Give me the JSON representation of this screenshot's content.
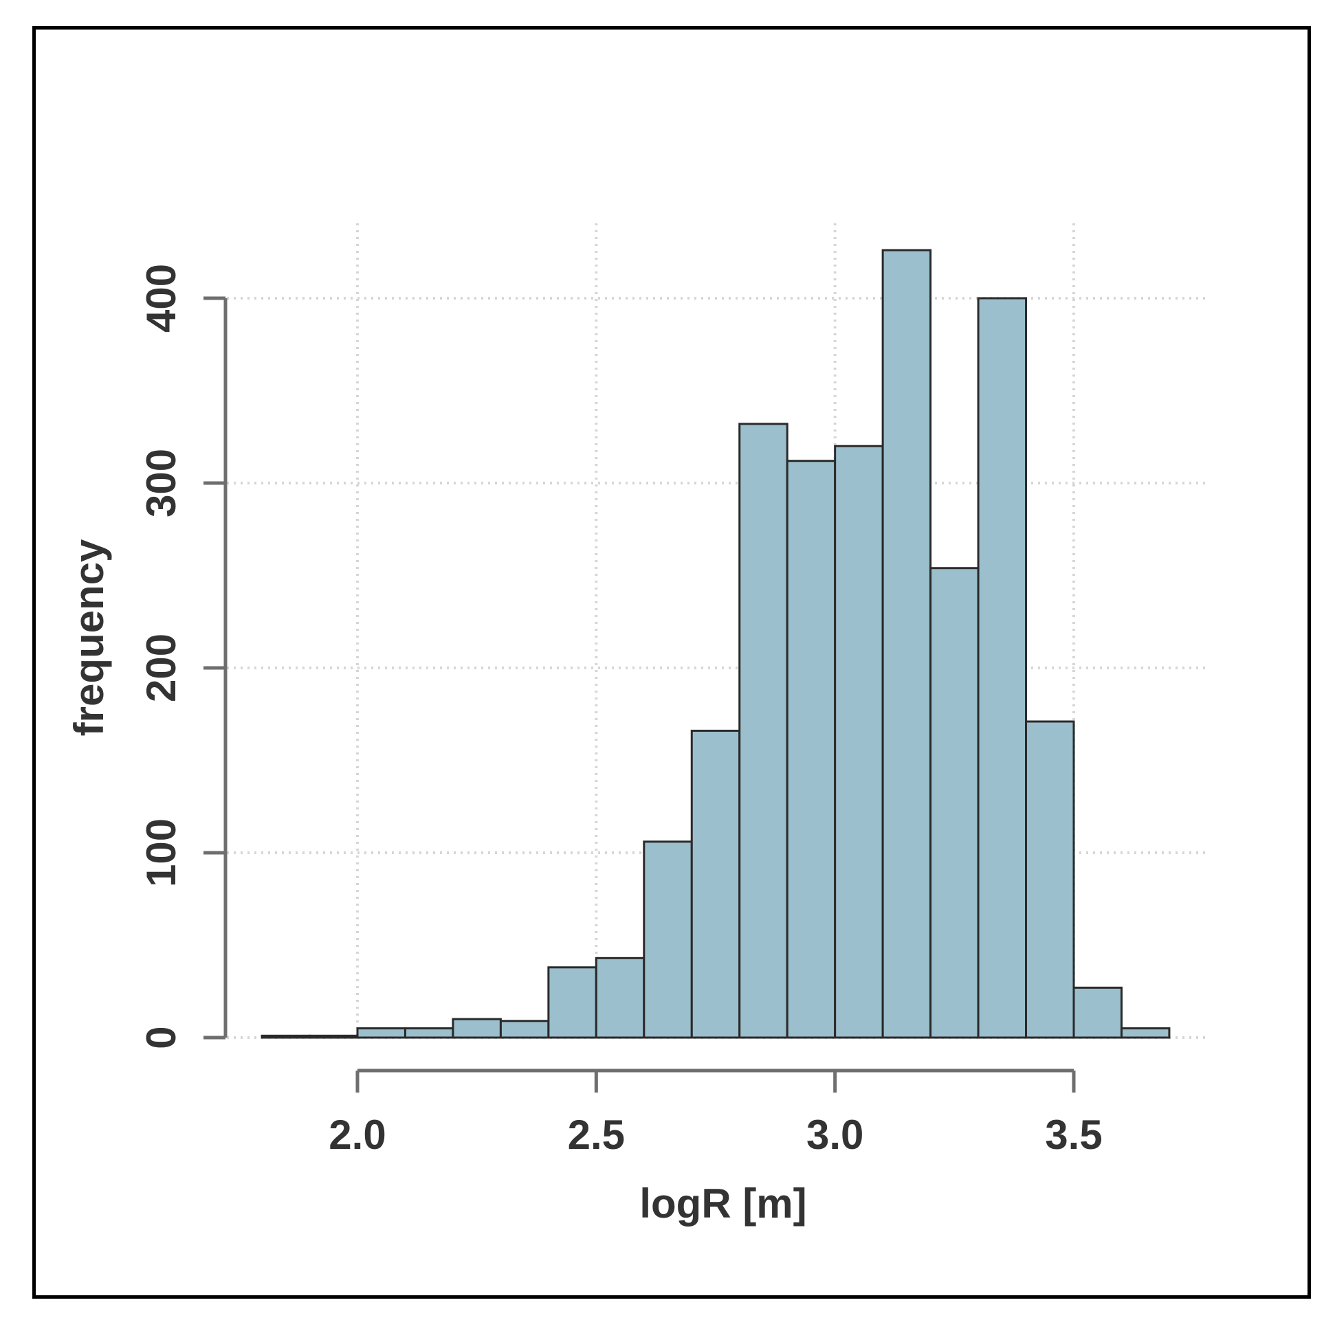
{
  "chart_data": {
    "type": "bar",
    "subtype": "histogram",
    "xlabel": "logR [m]",
    "ylabel": "frequency",
    "xlim": [
      1.75,
      3.8
    ],
    "ylim": [
      0,
      440
    ],
    "x_ticks": [
      2.0,
      2.5,
      3.0,
      3.5
    ],
    "x_tick_labels": [
      "2.0",
      "2.5",
      "3.0",
      "3.5"
    ],
    "y_ticks": [
      0,
      100,
      200,
      300,
      400
    ],
    "y_tick_labels": [
      "0",
      "100",
      "200",
      "300",
      "400"
    ],
    "grid": true,
    "bin_edges": [
      1.8,
      1.9,
      2.0,
      2.1,
      2.2,
      2.3,
      2.4,
      2.5,
      2.6,
      2.7,
      2.8,
      2.9,
      3.0,
      3.1,
      3.2,
      3.3,
      3.4,
      3.5,
      3.6,
      3.7
    ],
    "values": [
      1,
      1,
      5,
      5,
      10,
      9,
      38,
      43,
      106,
      166,
      332,
      312,
      320,
      426,
      254,
      400,
      171,
      27,
      5
    ],
    "bar_color": "#9bbfcc",
    "edge_color": "#2a2a2a",
    "axis_color": "#6e6e6e",
    "grid_color": "#d6d6d6"
  }
}
